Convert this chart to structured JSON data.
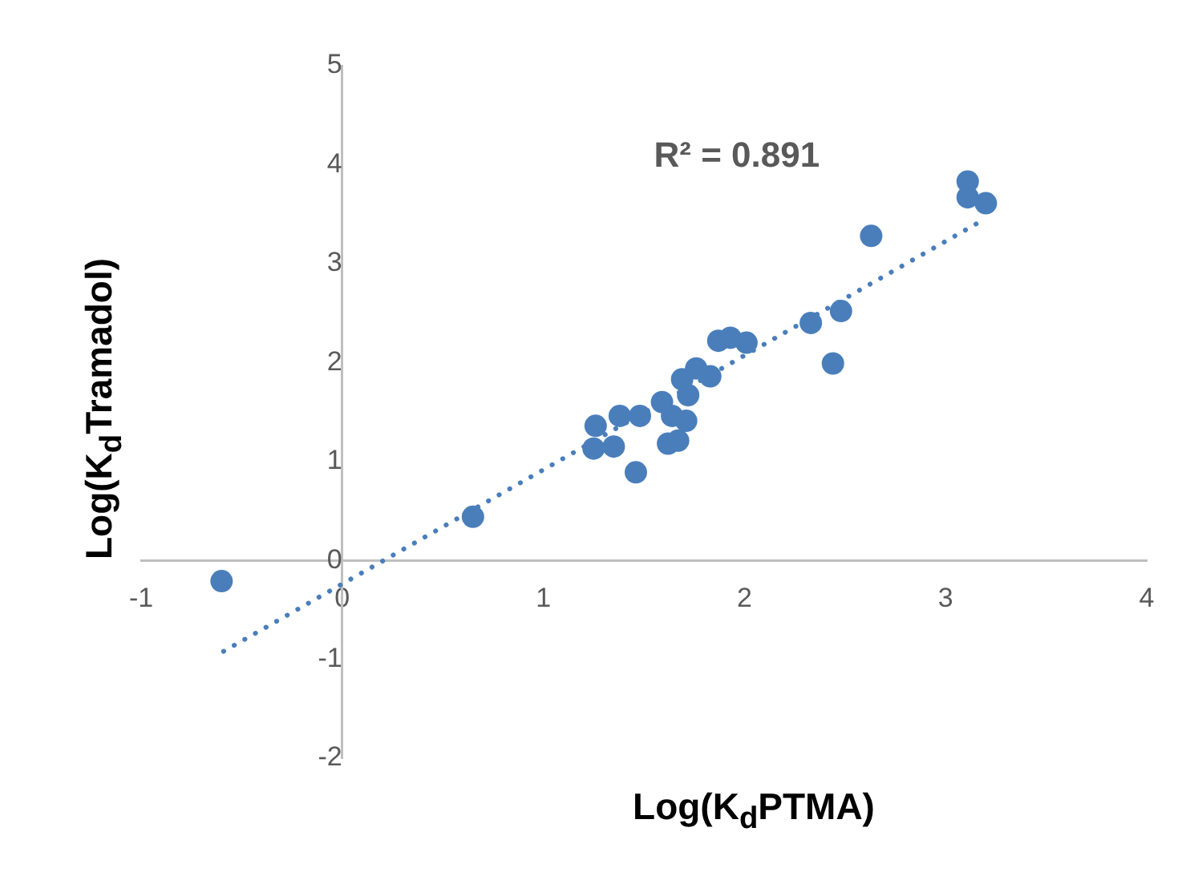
{
  "chart_data": {
    "type": "scatter",
    "xlabel": "Log(K$_{d}$PTMA)",
    "ylabel": "Log(K$_{d}$Tramadol)",
    "annotations": [
      "R² = 0.891"
    ],
    "xlim": [
      -1,
      4
    ],
    "xticks": [
      -1,
      0,
      1,
      2,
      3,
      4
    ],
    "ylim": [
      -2,
      5
    ],
    "yticks": [
      -2,
      -1,
      0,
      1,
      2,
      3,
      4,
      5
    ],
    "grid": false,
    "legend": false,
    "marker": "circle",
    "series": [
      {
        "color": "#4a7ebb",
        "x": [
          -0.6,
          0.65,
          1.26,
          1.25,
          1.35,
          1.38,
          1.48,
          1.46,
          1.59,
          1.62,
          1.67,
          1.64,
          1.71,
          1.69,
          1.72,
          1.76,
          1.83,
          1.87,
          1.93,
          2.01,
          2.33,
          2.48,
          2.44,
          2.63,
          3.11,
          3.11,
          3.2
        ],
        "values": [
          -0.21,
          0.44,
          1.36,
          1.13,
          1.15,
          1.46,
          1.46,
          0.89,
          1.6,
          1.18,
          1.21,
          1.46,
          1.41,
          1.83,
          1.67,
          1.94,
          1.86,
          2.22,
          2.25,
          2.2,
          2.4,
          2.52,
          1.99,
          3.28,
          3.83,
          3.67,
          3.61
        ]
      },
      {
        "type": "line",
        "color": "#4a7ebb",
        "line_style": "dotted",
        "marker": "none",
        "x": [
          -0.59,
          3.16
        ],
        "values": [
          -0.92,
          3.41
        ]
      }
    ]
  }
}
